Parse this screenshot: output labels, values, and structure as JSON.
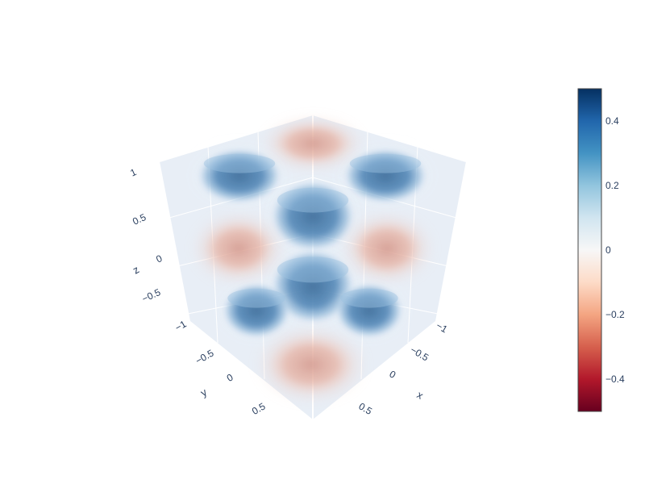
{
  "chart_data": {
    "type": "volume",
    "title": "",
    "axes": {
      "x": {
        "label": "x",
        "ticks": [
          "−1",
          "−0.5",
          "0",
          "0.5"
        ],
        "range": [
          -1,
          1
        ]
      },
      "y": {
        "label": "y",
        "ticks": [
          "−1",
          "−0.5",
          "0",
          "0.5"
        ],
        "range": [
          -1,
          1
        ]
      },
      "z": {
        "label": "z",
        "ticks": [
          "−0.5",
          "0",
          "0.5",
          "1"
        ],
        "range": [
          -1,
          1
        ]
      }
    },
    "colorbar": {
      "colorscale": "RdBu",
      "cmin": -0.5,
      "cmax": 0.5,
      "ticks": [
        "0.4",
        "0.2",
        "0",
        "−0.2",
        "−0.4"
      ],
      "tick_values": [
        0.4,
        0.2,
        0,
        -0.2,
        -0.4
      ],
      "colors": [
        "#053061",
        "#2166ac",
        "#4393c3",
        "#92c5de",
        "#d1e5f0",
        "#f7f7f7",
        "#fddbc7",
        "#f4a582",
        "#d6604d",
        "#b2182b",
        "#67001f"
      ]
    },
    "blobs": [
      {
        "name": "top-center",
        "value": -0.3
      },
      {
        "name": "upper-left",
        "value": 0.35
      },
      {
        "name": "upper-right",
        "value": 0.35
      },
      {
        "name": "center-upper",
        "value": 0.45
      },
      {
        "name": "middle-left",
        "value": -0.2
      },
      {
        "name": "middle-right",
        "value": -0.2
      },
      {
        "name": "center-lower",
        "value": 0.45
      },
      {
        "name": "lower-left",
        "value": 0.35
      },
      {
        "name": "lower-right",
        "value": 0.35
      },
      {
        "name": "bottom-center",
        "value": -0.3
      }
    ]
  }
}
